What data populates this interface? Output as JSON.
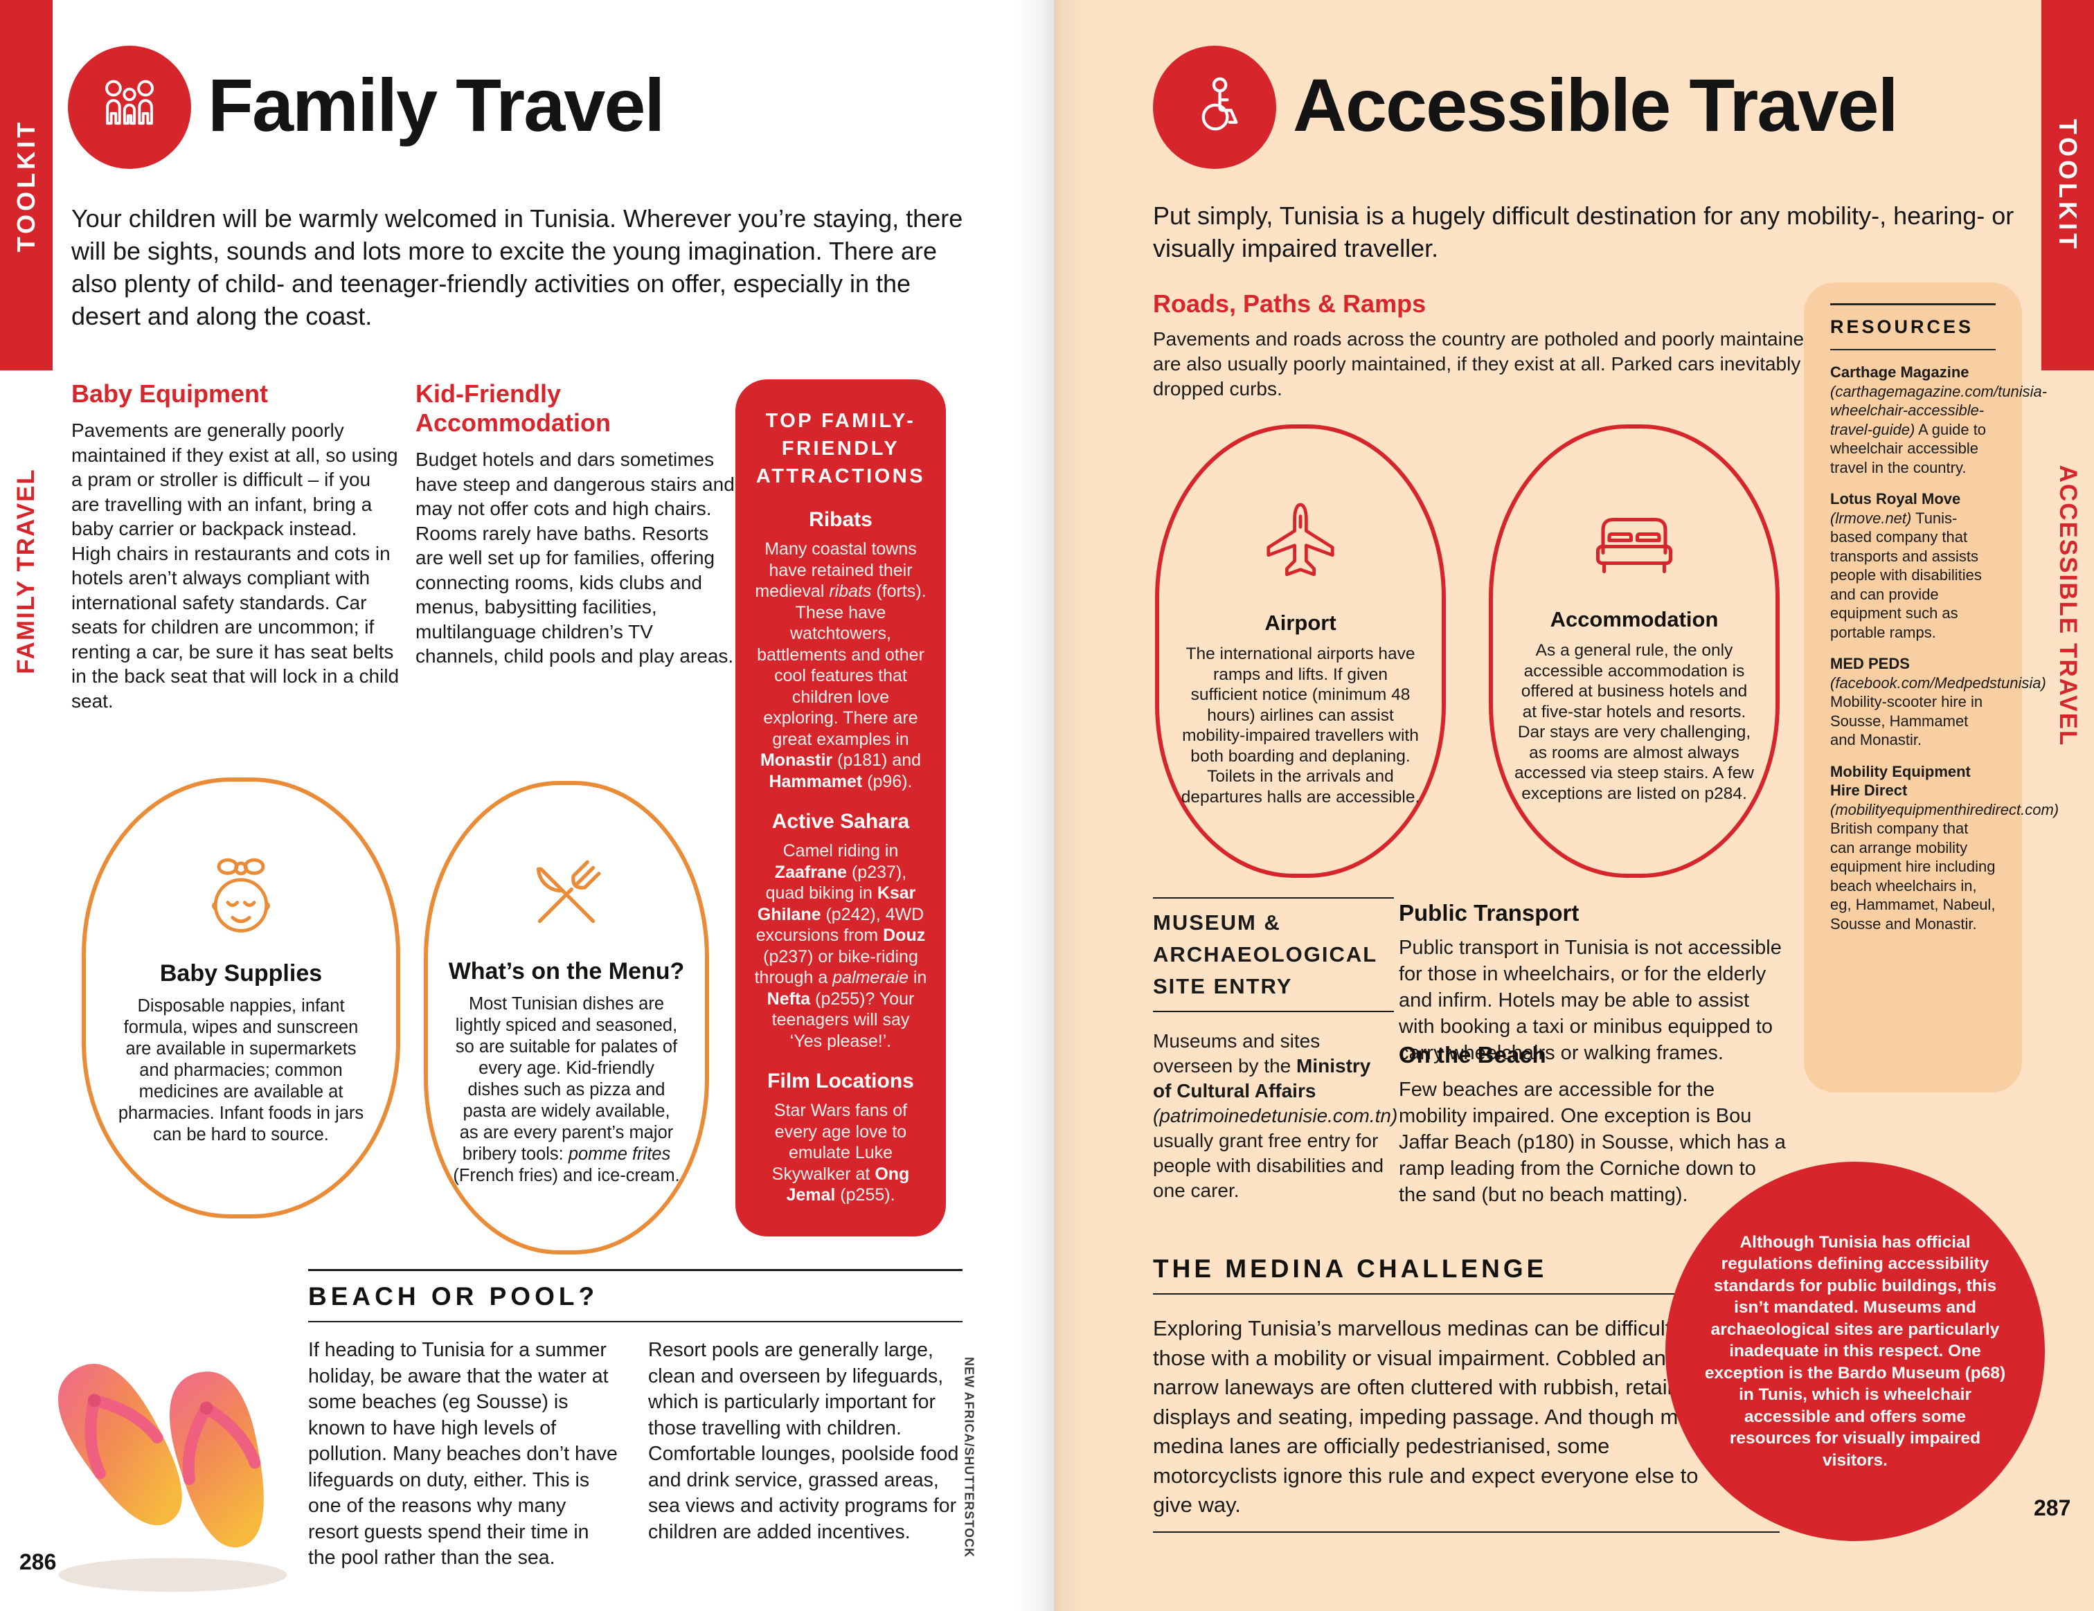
{
  "colors": {
    "red": "#d7262b",
    "orange": "#e98b37",
    "peach": "#fde2c5",
    "peach_dark": "#f8cfa2",
    "ink": "#1a1a18"
  },
  "left_page": {
    "tab_toolkit": "TOOLKIT",
    "tab_section": "FAMILY TRAVEL",
    "title": "Family Travel",
    "intro": "Your children will be warmly welcomed in Tunisia. Wherever you’re staying, there will be sights, sounds and lots more to excite the young imagination. There are also plenty of child- and teenager-friendly activities on offer, especially in the desert and along the coast.",
    "baby_equipment": {
      "heading": "Baby Equipment",
      "body": "Pavements are generally poorly maintained if they exist at all, so using a pram or stroller is difficult – if you are travelling with an infant, bring a baby carrier or backpack instead. High chairs in restaurants and cots in hotels aren’t always compliant with international safety standards. Car seats for children are uncommon; if renting a car, be sure it has seat belts in the back seat that will lock in a child seat."
    },
    "kid_friendly": {
      "heading": "Kid-Friendly Accommodation",
      "body": "Budget hotels and dars sometimes have steep and dangerous stairs and may not offer cots and high chairs. Rooms rarely have baths. Resorts are well set up for families, offering connecting rooms, kids clubs and menus, babysitting facilities, multilanguage children’s TV channels, child pools and play areas."
    },
    "attractions_box": {
      "heading": "TOP FAMILY-FRIENDLY ATTRACTIONS",
      "items": [
        {
          "title": "Ribats",
          "body_html": "Many coastal towns have retained their medieval <i>ribats</i> (forts). These have watchtowers, battlements and other cool features that children love exploring. There are great examples in <b>Monastir</b> (p181) and <b>Hammamet</b> (p96)."
        },
        {
          "title": "Active Sahara",
          "body_html": "Camel riding in <b>Zaafrane</b> (p237), quad biking in <b>Ksar Ghilane</b> (p242), 4WD excursions from <b>Douz</b> (p237) or bike-riding through a <i>palmeraie</i> in <b>Nefta</b> (p255)? Your teenagers will say ‘Yes please!’."
        },
        {
          "title": "Film Locations",
          "body_html": "Star Wars fans of every age love to emulate Luke Skywalker at <b>Ong Jemal</b> (p255)."
        }
      ]
    },
    "baby_supplies": {
      "title": "Baby Supplies",
      "body": "Disposable nappies, infant formula, wipes and sunscreen are available in supermarkets and pharmacies; common medicines are available at pharmacies. Infant foods in jars can be hard to source."
    },
    "menu": {
      "title": "What’s on the Menu?",
      "body_html": "Most Tunisian dishes are lightly spiced and seasoned, so are suitable for palates of every age. Kid-friendly dishes such as pizza and pasta are widely available, as are every parent’s major bribery tools: <i>pomme frites</i> (French fries) and ice-cream."
    },
    "beach_or_pool": {
      "heading": "BEACH OR POOL?",
      "col1": "If heading to Tunisia for a summer holiday, be aware that the water at some beaches (eg Sousse) is known to have high levels of pollution. Many beaches don’t have lifeguards on duty, either. This is one of the reasons why many resort guests spend their time in the pool rather than the sea.",
      "col2": "Resort pools are generally large, clean and overseen by lifeguards, which is particularly important for those travelling with children. Comfortable lounges, poolside food and drink service, grassed areas, sea views and activity programs for children are added incentives."
    },
    "photo_credit": "NEW AFRICA/SHUTTERSTOCK",
    "page_number": "286"
  },
  "right_page": {
    "tab_toolkit": "TOOLKIT",
    "tab_section": "ACCESSIBLE TRAVEL",
    "title": "Accessible Travel",
    "intro": "Put simply, Tunisia is a hugely difficult destination for any mobility-, hearing- or visually impaired traveller.",
    "roads": {
      "heading": "Roads, Paths & Ramps",
      "body": "Pavements and roads across the country are potholed and poorly maintained. Ramps are also usually poorly maintained, if they exist at all. Parked cars inevitably block dropped curbs."
    },
    "airport": {
      "title": "Airport",
      "body": "The international airports have ramps and lifts. If given sufficient notice (minimum 48 hours) airlines can assist mobility-impaired travellers with both boarding and deplaning. Toilets in the arrivals and departures halls are accessible."
    },
    "accommodation": {
      "title": "Accommodation",
      "body": "As a general rule, the only accessible accommodation is offered at business hotels and at five-star hotels and resorts. Dar stays are very challenging, as rooms are almost always accessed via steep stairs. A few exceptions are listed on p284."
    },
    "resources": {
      "heading": "RESOURCES",
      "items": [
        {
          "body_html": "<b>Carthage Magazine</b> <i>(carthagemagazine.com/tunisia-wheelchair-accessible-travel-guide)</i> A guide to wheelchair accessible travel in the country."
        },
        {
          "body_html": "<b>Lotus Royal Move</b> <i>(lrmove.net)</i> Tunis-based company that transports and assists people with disabilities and can provide equipment such as portable ramps."
        },
        {
          "body_html": "<b>MED PEDS</b> <i>(facebook.com/Medpedstunisia)</i> Mobility-scooter hire in Sousse, Hammamet and Monastir."
        },
        {
          "body_html": "<b>Mobility Equipment Hire Direct</b> <i>(mobilityequipmenthiredirect.com)</i> British company that can arrange mobility equipment hire including beach wheelchairs in, eg, Hammamet, Nabeul, Sousse and Monastir."
        }
      ]
    },
    "museum": {
      "heading": "MUSEUM & ARCHAEOLOGICAL SITE ENTRY",
      "body_html": "Museums and sites overseen by the <b>Ministry of Cultural Affairs</b> <i>(patrimoinedetunisie.com.tn)</i> usually grant free entry for people with disabilities and one carer."
    },
    "public_transport": {
      "heading": "Public Transport",
      "body": "Public transport in Tunisia is not accessible for those in wheelchairs, or for the elderly and infirm. Hotels may be able to assist with booking a taxi or minibus equipped to carry wheelchairs or walking frames."
    },
    "on_the_beach": {
      "heading": "On the Beach",
      "body": "Few beaches are accessible for the mobility impaired. One exception is Bou Jaffar Beach (p180) in Sousse, which has a ramp leading from the Corniche down to the sand (but no beach matting)."
    },
    "medina": {
      "heading": "THE MEDINA CHALLENGE",
      "body": "Exploring Tunisia’s marvellous medinas can be difficult for those with a mobility or visual impairment. Cobbled and narrow laneways are often cluttered with rubbish, retail displays and seating, impeding passage. And though most medina lanes are officially pedestrianised, some motorcyclists ignore this rule and expect everyone else to give way."
    },
    "note_circle": "Although Tunisia has official regulations defining accessibility standards for public buildings, this isn’t mandated. Museums and archaeological sites are particularly inadequate in this respect. One exception is the Bardo Museum (p68) in Tunis, which is wheelchair accessible and offers some resources for visually impaired visitors.",
    "page_number": "287"
  }
}
